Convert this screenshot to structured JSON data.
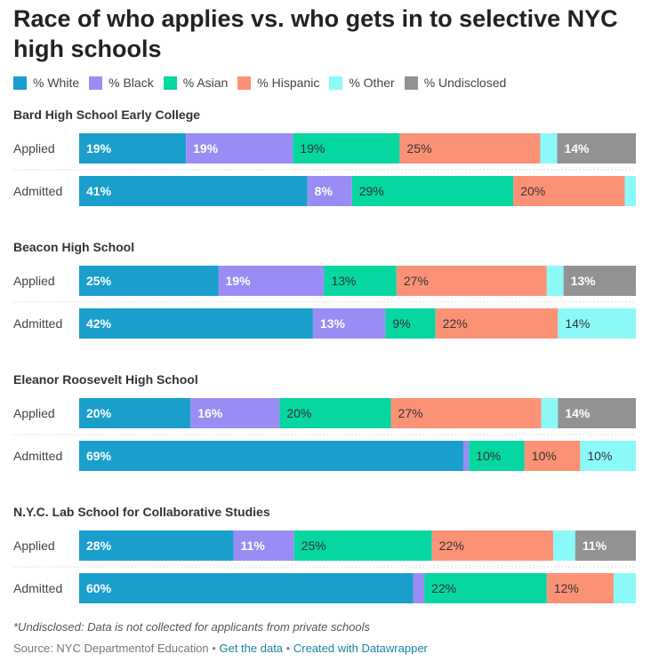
{
  "title": "Race of who applies vs. who gets in to selective NYC high schools",
  "legend": [
    {
      "label": "% White",
      "color": "#1a9fcc"
    },
    {
      "label": "% Black",
      "color": "#9a8cf5"
    },
    {
      "label": "% Asian",
      "color": "#06d6a0"
    },
    {
      "label": "% Hispanic",
      "color": "#fb9276"
    },
    {
      "label": "% Other",
      "color": "#8cf9f9"
    },
    {
      "label": "% Undisclosed",
      "color": "#929292"
    }
  ],
  "chart_data": {
    "type": "bar",
    "stacked": true,
    "orientation": "horizontal",
    "series_names": [
      "% White",
      "% Black",
      "% Asian",
      "% Hispanic",
      "% Other",
      "% Undisclosed"
    ],
    "colors": [
      "#1a9fcc",
      "#9a8cf5",
      "#06d6a0",
      "#fb9276",
      "#8cf9f9",
      "#929292"
    ],
    "label_colors": [
      "#ffffff",
      "#ffffff",
      "#333333",
      "#333333",
      "#333333",
      "#ffffff"
    ],
    "groups": [
      {
        "name": "Bard High School Early College",
        "rows": [
          {
            "label": "Applied",
            "values": [
              19,
              19,
              19,
              25,
              3,
              14
            ],
            "labels": [
              "19%",
              "19%",
              "19%",
              "25%",
              "",
              "14%"
            ]
          },
          {
            "label": "Admitted",
            "values": [
              41,
              8,
              29,
              20,
              2,
              0
            ],
            "labels": [
              "41%",
              "8%",
              "29%",
              "20%",
              "",
              ""
            ]
          }
        ]
      },
      {
        "name": "Beacon High School",
        "rows": [
          {
            "label": "Applied",
            "values": [
              25,
              19,
              13,
              27,
              3,
              13
            ],
            "labels": [
              "25%",
              "19%",
              "13%",
              "27%",
              "",
              "13%"
            ]
          },
          {
            "label": "Admitted",
            "values": [
              42,
              13,
              9,
              22,
              14,
              0
            ],
            "labels": [
              "42%",
              "13%",
              "9%",
              "22%",
              "14%",
              ""
            ]
          }
        ]
      },
      {
        "name": "Eleanor Roosevelt High School",
        "rows": [
          {
            "label": "Applied",
            "values": [
              20,
              16,
              20,
              27,
              3,
              14
            ],
            "labels": [
              "20%",
              "16%",
              "20%",
              "27%",
              "",
              "14%"
            ]
          },
          {
            "label": "Admitted",
            "values": [
              69,
              1,
              10,
              10,
              10,
              0
            ],
            "labels": [
              "69%",
              "",
              "10%",
              "10%",
              "10%",
              ""
            ]
          }
        ]
      },
      {
        "name": "N.Y.C. Lab School for Collaborative Studies",
        "rows": [
          {
            "label": "Applied",
            "values": [
              28,
              11,
              25,
              22,
              4,
              11
            ],
            "labels": [
              "28%",
              "11%",
              "25%",
              "22%",
              "",
              "11%"
            ]
          },
          {
            "label": "Admitted",
            "values": [
              60,
              2,
              22,
              12,
              4,
              0
            ],
            "labels": [
              "60%",
              "",
              "22%",
              "12%",
              "",
              ""
            ]
          }
        ]
      }
    ]
  },
  "footnote": "*Undisclosed: Data is not collected for applicants from private schools",
  "source": {
    "text": "Source: NYC Departmentof Education",
    "separator": "•",
    "get_data": "Get the data",
    "created_with": "Created with Datawrapper"
  }
}
